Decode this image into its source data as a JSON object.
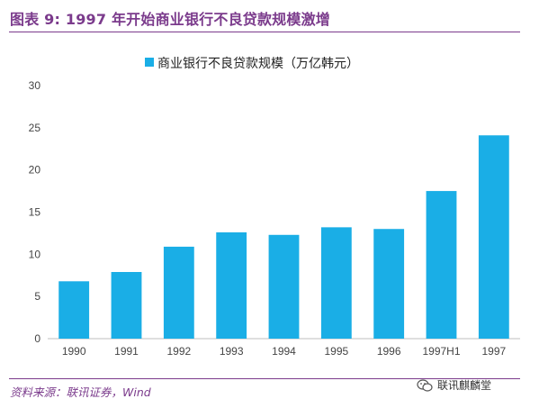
{
  "figure": {
    "title": "图表 9: 1997 年开始商业银行不良贷款规模激增",
    "source": "资料来源：联讯证券，Wind",
    "watermark": "联讯麒麟堂",
    "watermark_icon": "wechat-icon"
  },
  "colors": {
    "accent": "#7b3b8c",
    "bar": "#1aaee6",
    "axis": "#bfbfbf"
  },
  "chart_data": {
    "type": "bar",
    "categories": [
      "1990",
      "1991",
      "1992",
      "1993",
      "1994",
      "1995",
      "1996",
      "1997H1",
      "1997"
    ],
    "series": [
      {
        "name": "商业银行不良贷款规模（万亿韩元）",
        "values": [
          6.8,
          7.9,
          10.9,
          12.6,
          12.3,
          13.2,
          13.0,
          17.5,
          24.1
        ]
      }
    ],
    "title": "",
    "xlabel": "",
    "ylabel": "",
    "ylim": [
      0,
      30
    ],
    "yticks": [
      "0",
      "5",
      "10",
      "15",
      "20",
      "25",
      "30"
    ],
    "grid": false,
    "legend": "top-center"
  }
}
